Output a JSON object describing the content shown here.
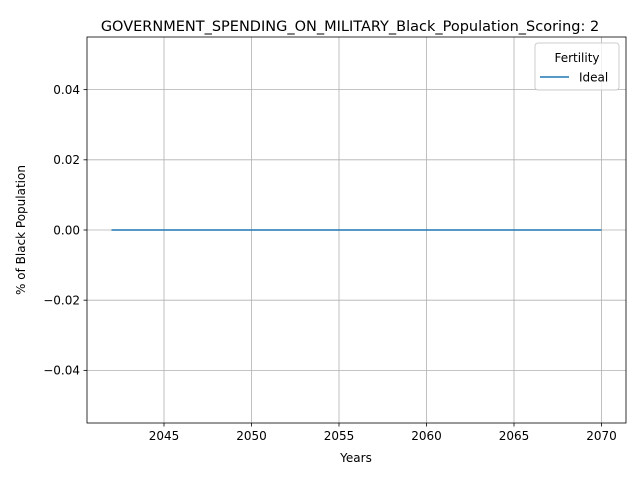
{
  "chart_data": {
    "type": "line",
    "title": "GOVERNMENT_SPENDING_ON_MILITARY_Black_Population_Scoring: 2",
    "xlabel": "Years",
    "ylabel": "% of Black Population",
    "xlim": [
      2040.6,
      2071.4
    ],
    "ylim": [
      -0.055,
      0.055
    ],
    "xticks": [
      2045,
      2050,
      2055,
      2060,
      2065,
      2070
    ],
    "xtick_labels": [
      "2045",
      "2050",
      "2055",
      "2060",
      "2065",
      "2070"
    ],
    "yticks": [
      -0.04,
      -0.02,
      0.0,
      0.02,
      0.04
    ],
    "ytick_labels": [
      "−0.04",
      "−0.02",
      "0.00",
      "0.02",
      "0.04"
    ],
    "grid": true,
    "legend": {
      "title": "Fertility",
      "placement": "top-right"
    },
    "series": [
      {
        "name": "Ideal",
        "color": "#1f77b4",
        "x": [
          2042,
          2070
        ],
        "y": [
          0.0,
          0.0
        ]
      }
    ]
  }
}
